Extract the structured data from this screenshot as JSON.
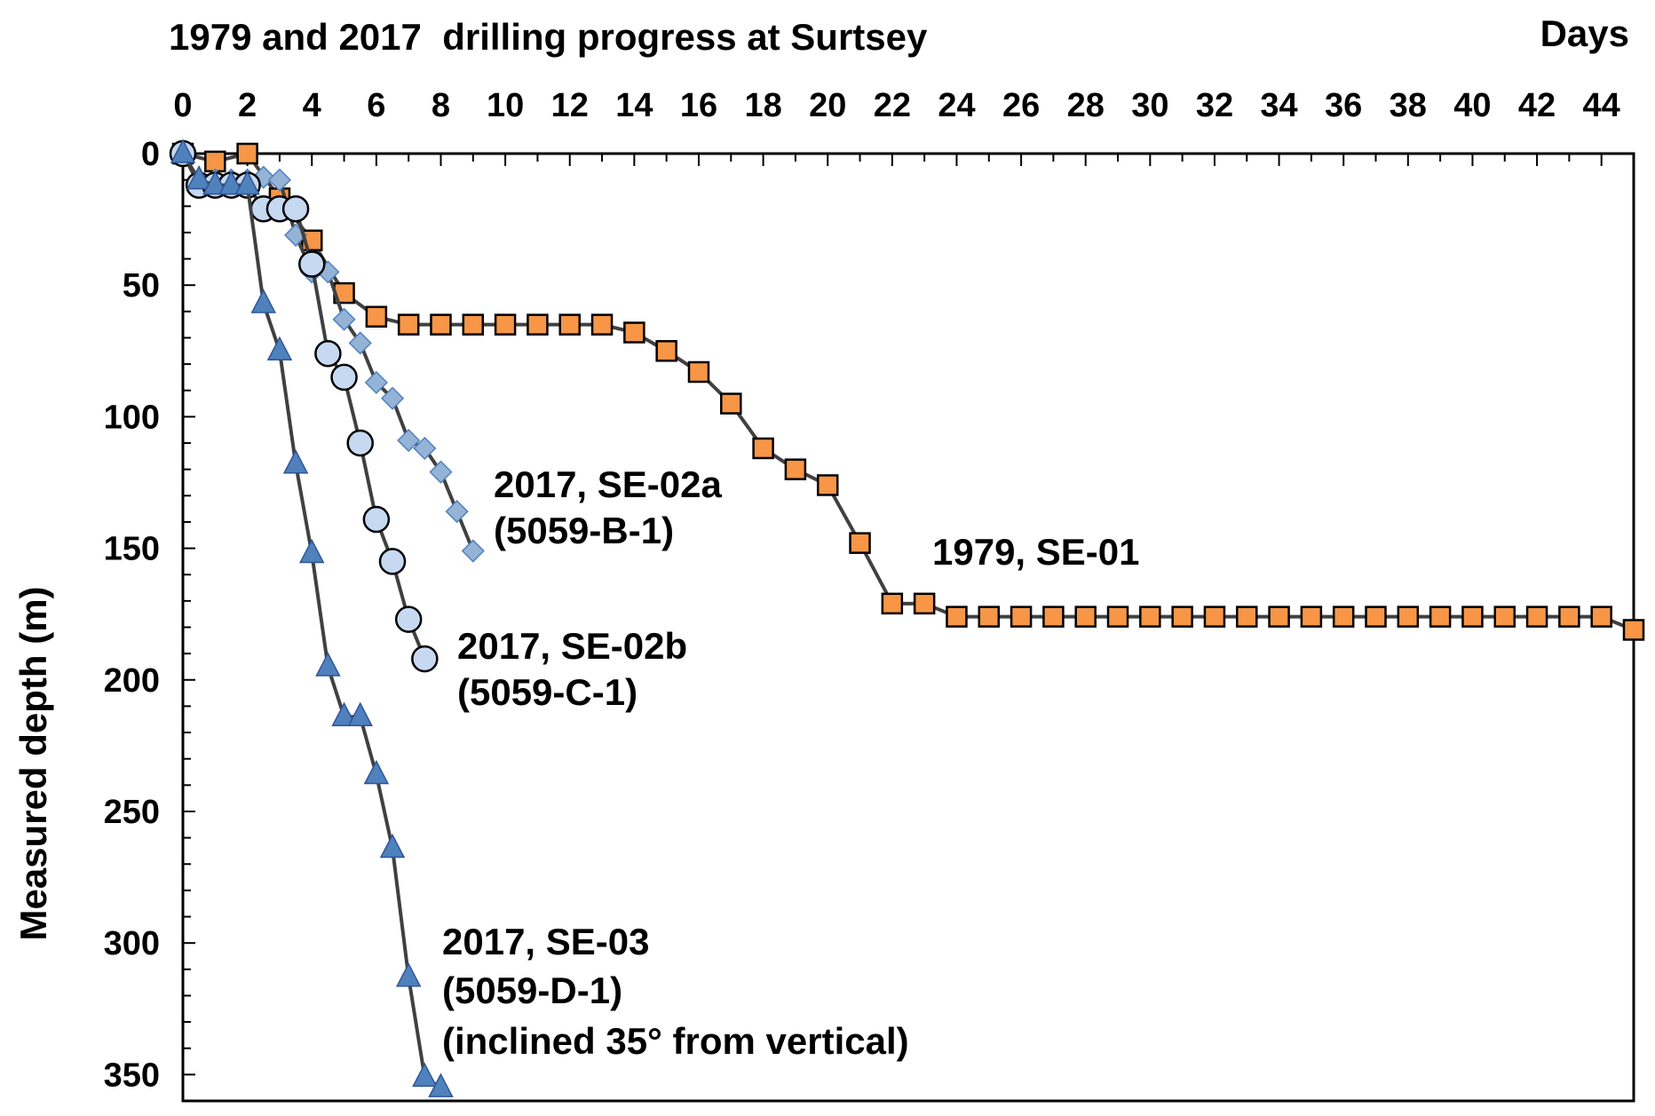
{
  "chart_data": {
    "type": "line",
    "title": "1979 and 2017  drilling progress at Surtsey",
    "xlabel": "Days",
    "ylabel": "Measured depth (m)",
    "xlim": [
      0,
      45
    ],
    "ylim": [
      0,
      360
    ],
    "y_inverted": true,
    "x_axis_position": "top",
    "xticks": [
      0,
      2,
      4,
      6,
      8,
      10,
      12,
      14,
      16,
      18,
      20,
      22,
      24,
      26,
      28,
      30,
      32,
      34,
      36,
      38,
      40,
      42,
      44
    ],
    "yticks": [
      0,
      50,
      100,
      150,
      200,
      250,
      300,
      350
    ],
    "grid": false,
    "legend": "none (direct labels)",
    "series": [
      {
        "name": "1979, SE-01",
        "label_lines": [
          "1979, SE-01"
        ],
        "marker": "square",
        "color": "#F79646",
        "x": [
          0,
          1,
          2,
          3,
          4,
          5,
          6,
          7,
          8,
          9,
          10,
          11,
          12,
          13,
          14,
          15,
          16,
          17,
          18,
          19,
          20,
          21,
          22,
          23,
          24,
          25,
          26,
          27,
          28,
          29,
          30,
          31,
          32,
          33,
          34,
          35,
          36,
          37,
          38,
          39,
          40,
          41,
          42,
          43,
          44,
          45
        ],
        "y": [
          0,
          3,
          0,
          17,
          33,
          53,
          62,
          65,
          65,
          65,
          65,
          65,
          65,
          65,
          68,
          75,
          83,
          95,
          112,
          120,
          126,
          148,
          171,
          171,
          176,
          176,
          176,
          176,
          176,
          176,
          176,
          176,
          176,
          176,
          176,
          176,
          176,
          176,
          176,
          176,
          176,
          176,
          176,
          176,
          176,
          181
        ]
      },
      {
        "name": "2017, SE-02a (5059-B-1)",
        "label_lines": [
          "2017, SE-02a",
          "(5059-B-1)"
        ],
        "marker": "diamond",
        "color": "#95B3D7",
        "x": [
          0,
          0.5,
          1,
          1.5,
          2,
          2.5,
          3,
          3.5,
          4,
          4.5,
          5,
          5.5,
          6,
          6.5,
          7,
          7.5,
          8,
          8.5,
          9
        ],
        "y": [
          0,
          10,
          10,
          10,
          10,
          9,
          10,
          31,
          45,
          45,
          63,
          72,
          87,
          93,
          109,
          112,
          121,
          136,
          151
        ]
      },
      {
        "name": "2017, SE-02b (5059-C-1)",
        "label_lines": [
          "2017, SE-02b",
          "(5059-C-1)"
        ],
        "marker": "circle",
        "color": "#C6D9F1",
        "x": [
          0,
          0.5,
          1,
          1.5,
          2,
          2.5,
          3,
          3.5,
          4,
          4.5,
          5,
          5.5,
          6,
          6.5,
          7,
          7.5
        ],
        "y": [
          0,
          12,
          12,
          12,
          12,
          21,
          21,
          21,
          42,
          76,
          85,
          110,
          139,
          155,
          177,
          192
        ]
      },
      {
        "name": "2017, SE-03 (5059-D-1) (inclined 35° from vertical)",
        "label_lines": [
          "2017, SE-03",
          "(5059-D-1)",
          "(inclined 35° from vertical)"
        ],
        "marker": "triangle",
        "color": "#4F81BD",
        "x": [
          0,
          0.5,
          1,
          1.5,
          2,
          2.5,
          3,
          3.5,
          4,
          4.5,
          5,
          5.5,
          6,
          6.5,
          7,
          7.5,
          8
        ],
        "y": [
          0,
          10,
          12,
          12,
          12,
          57,
          75,
          118,
          152,
          195,
          214,
          214,
          236,
          264,
          313,
          351,
          355
        ]
      }
    ]
  }
}
